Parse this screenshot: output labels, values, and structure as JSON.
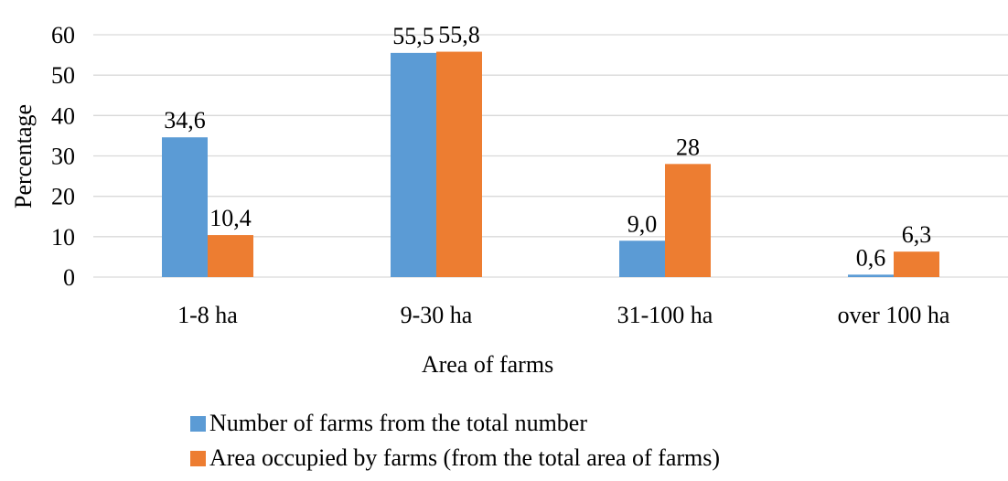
{
  "chart_data": {
    "type": "bar",
    "categories": [
      "1-8 ha",
      "9-30 ha",
      "31-100 ha",
      "over 100 ha"
    ],
    "series": [
      {
        "name": "Number of farms from the total number",
        "color": "#5B9BD5",
        "values": [
          34.6,
          55.5,
          9.0,
          0.6
        ],
        "labels": [
          "34,6",
          "55,5",
          "9,0",
          "0,6"
        ]
      },
      {
        "name": "Area occupied by farms (from the total area of farms)",
        "color": "#ED7D31",
        "values": [
          10.4,
          55.8,
          28,
          6.3
        ],
        "labels": [
          "10,4",
          "55,8",
          "28",
          "6,3"
        ]
      }
    ],
    "title": "",
    "xlabel": "Area of farms",
    "ylabel": "Percentage",
    "ylim": [
      0,
      60
    ],
    "yticks": [
      0,
      10,
      20,
      30,
      40,
      50,
      60
    ],
    "grid": true,
    "legend_position": "bottom"
  }
}
